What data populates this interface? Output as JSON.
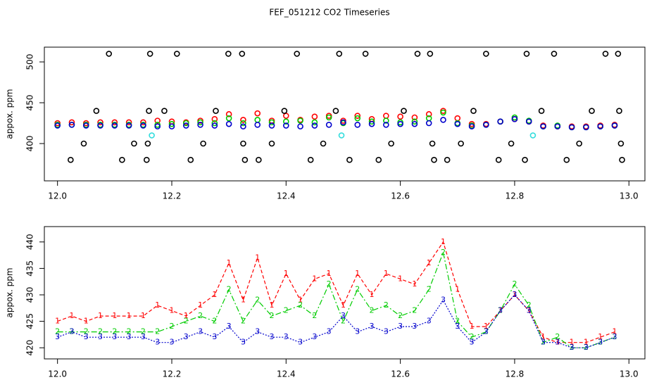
{
  "chart_data": [
    {
      "type": "scatter",
      "title": "FEF_051212  CO2 Timeseries",
      "ylabel": "appox. ppm",
      "xlim": [
        11.977,
        13.028
      ],
      "ylim": [
        354.3,
        518.1
      ],
      "xticks": [
        {
          "value": 12,
          "label": "12.0"
        },
        12.2,
        12.4,
        12.6,
        12.8,
        {
          "value": 13,
          "label": "13.0"
        }
      ],
      "yticks": [
        400,
        450,
        500
      ],
      "series": [
        {
          "color": "#ff0000",
          "x": [
            12.0,
            12.025,
            12.05,
            12.075,
            12.1,
            12.125,
            12.15,
            12.175,
            12.2,
            12.225,
            12.25,
            12.275,
            12.3,
            12.325,
            12.35,
            12.375,
            12.4,
            12.425,
            12.45,
            12.475,
            12.5,
            12.525,
            12.55,
            12.575,
            12.6,
            12.625,
            12.65,
            12.675,
            12.7,
            12.725,
            12.75,
            12.775,
            12.8,
            12.825,
            12.85,
            12.875,
            12.9,
            12.925,
            12.95,
            12.975
          ],
          "values": [
            425,
            426,
            425,
            426,
            426,
            426,
            426,
            428,
            427,
            426,
            428,
            430,
            436,
            429,
            437,
            428,
            434,
            429,
            433,
            434,
            428,
            434,
            430,
            434,
            433,
            432,
            436,
            440,
            431,
            424,
            424,
            427,
            430,
            427,
            422,
            421,
            421,
            421,
            422,
            423
          ]
        },
        {
          "color": "#00cc00",
          "x": [
            12.0,
            12.025,
            12.05,
            12.075,
            12.1,
            12.125,
            12.15,
            12.175,
            12.2,
            12.225,
            12.25,
            12.275,
            12.3,
            12.325,
            12.35,
            12.375,
            12.4,
            12.425,
            12.45,
            12.475,
            12.5,
            12.525,
            12.55,
            12.575,
            12.6,
            12.625,
            12.65,
            12.675,
            12.7,
            12.725,
            12.75,
            12.775,
            12.8,
            12.825,
            12.85,
            12.875,
            12.9,
            12.925,
            12.95,
            12.975
          ],
          "values": [
            423,
            423,
            423,
            423,
            423,
            423,
            423,
            423,
            424,
            425,
            426,
            425,
            431,
            425,
            429,
            426,
            427,
            428,
            426,
            432,
            425,
            431,
            427,
            428,
            426,
            427,
            431,
            438,
            425,
            422,
            423,
            427,
            432,
            428,
            421,
            422,
            420,
            420,
            421,
            422
          ]
        },
        {
          "color": "#0000cc",
          "x": [
            12.0,
            12.025,
            12.05,
            12.075,
            12.1,
            12.125,
            12.15,
            12.175,
            12.2,
            12.225,
            12.25,
            12.275,
            12.3,
            12.325,
            12.35,
            12.375,
            12.4,
            12.425,
            12.45,
            12.475,
            12.5,
            12.525,
            12.55,
            12.575,
            12.6,
            12.625,
            12.65,
            12.675,
            12.7,
            12.725,
            12.75,
            12.775,
            12.8,
            12.825,
            12.85,
            12.875,
            12.9,
            12.925,
            12.95,
            12.975
          ],
          "values": [
            422,
            423,
            422,
            422,
            422,
            422,
            422,
            421,
            421,
            422,
            423,
            422,
            424,
            421,
            423,
            422,
            422,
            421,
            422,
            423,
            426,
            423,
            424,
            423,
            424,
            424,
            425,
            429,
            424,
            421,
            423,
            427,
            430,
            427,
            421,
            421,
            420,
            420,
            421,
            422
          ]
        },
        {
          "color": "#000000",
          "x": [
            12.023,
            12.046,
            12.068,
            12.09,
            12.113,
            12.134,
            12.156,
            12.158,
            12.16,
            12.162,
            12.187,
            12.209,
            12.233,
            12.255,
            12.277,
            12.299,
            12.323,
            12.325,
            12.328,
            12.352,
            12.375,
            12.397,
            12.419,
            12.443,
            12.465,
            12.487,
            12.493,
            12.511,
            12.539,
            12.562,
            12.584,
            12.606,
            12.63,
            12.652,
            12.656,
            12.659,
            12.682,
            12.706,
            12.728,
            12.75,
            12.772,
            12.794,
            12.818,
            12.821,
            12.847,
            12.869,
            12.891,
            12.913,
            12.935,
            12.959,
            12.981,
            12.983,
            12.986,
            12.988
          ],
          "values": [
            380,
            400,
            440,
            510,
            380,
            400,
            380,
            400,
            440,
            510,
            440,
            510,
            380,
            400,
            440,
            510,
            510,
            400,
            380,
            380,
            400,
            440,
            510,
            380,
            400,
            440,
            510,
            380,
            510,
            380,
            400,
            440,
            510,
            510,
            400,
            380,
            380,
            400,
            440,
            510,
            380,
            400,
            380,
            510,
            440,
            510,
            380,
            400,
            440,
            510,
            510,
            440,
            400,
            380
          ]
        },
        {
          "color": "#33dddd",
          "x": [
            12.165,
            12.497,
            12.832
          ],
          "values": [
            410,
            410,
            410
          ]
        }
      ]
    },
    {
      "type": "line",
      "ylabel": "appox. ppm",
      "xlim": [
        11.977,
        13.028
      ],
      "ylim": [
        417.9,
        442.9
      ],
      "xticks": [
        {
          "value": 12,
          "label": "12.0"
        },
        12.2,
        12.4,
        12.6,
        12.8,
        {
          "value": 13,
          "label": "13.0"
        }
      ],
      "yticks": [
        420,
        425,
        430,
        435,
        440
      ],
      "series": [
        {
          "marker": "1",
          "color": "#ff0000",
          "x": [
            12.0,
            12.025,
            12.05,
            12.075,
            12.1,
            12.125,
            12.15,
            12.175,
            12.2,
            12.225,
            12.25,
            12.275,
            12.3,
            12.325,
            12.35,
            12.375,
            12.4,
            12.425,
            12.45,
            12.475,
            12.5,
            12.525,
            12.55,
            12.575,
            12.6,
            12.625,
            12.65,
            12.675,
            12.7,
            12.725,
            12.75,
            12.775,
            12.8,
            12.825,
            12.85,
            12.875,
            12.9,
            12.925,
            12.95,
            12.975
          ],
          "values": [
            425,
            426,
            425,
            426,
            426,
            426,
            426,
            428,
            427,
            426,
            428,
            430,
            436,
            429,
            437,
            428,
            434,
            429,
            433,
            434,
            428,
            434,
            430,
            434,
            433,
            432,
            436,
            440,
            431,
            424,
            424,
            427,
            430,
            427,
            422,
            421,
            421,
            421,
            422,
            423
          ]
        },
        {
          "marker": "2",
          "color": "#00cc00",
          "x": [
            12.0,
            12.025,
            12.05,
            12.075,
            12.1,
            12.125,
            12.15,
            12.175,
            12.2,
            12.225,
            12.25,
            12.275,
            12.3,
            12.325,
            12.35,
            12.375,
            12.4,
            12.425,
            12.45,
            12.475,
            12.5,
            12.525,
            12.55,
            12.575,
            12.6,
            12.625,
            12.65,
            12.675,
            12.7,
            12.725,
            12.75,
            12.775,
            12.8,
            12.825,
            12.85,
            12.875,
            12.9,
            12.925,
            12.95,
            12.975
          ],
          "values": [
            423,
            423,
            423,
            423,
            423,
            423,
            423,
            423,
            424,
            425,
            426,
            425,
            431,
            425,
            429,
            426,
            427,
            428,
            426,
            432,
            425,
            431,
            427,
            428,
            426,
            427,
            431,
            438,
            425,
            422,
            423,
            427,
            432,
            428,
            421,
            422,
            420,
            420,
            421,
            422
          ]
        },
        {
          "marker": "3",
          "color": "#0000cc",
          "x": [
            12.0,
            12.025,
            12.05,
            12.075,
            12.1,
            12.125,
            12.15,
            12.175,
            12.2,
            12.225,
            12.25,
            12.275,
            12.3,
            12.325,
            12.35,
            12.375,
            12.4,
            12.425,
            12.45,
            12.475,
            12.5,
            12.525,
            12.55,
            12.575,
            12.6,
            12.625,
            12.65,
            12.675,
            12.7,
            12.725,
            12.75,
            12.775,
            12.8,
            12.825,
            12.85,
            12.875,
            12.9,
            12.925,
            12.95,
            12.975
          ],
          "values": [
            422,
            423,
            422,
            422,
            422,
            422,
            422,
            421,
            421,
            422,
            423,
            422,
            424,
            421,
            423,
            422,
            422,
            421,
            422,
            423,
            426,
            423,
            424,
            423,
            424,
            424,
            425,
            429,
            424,
            421,
            423,
            427,
            430,
            427,
            421,
            421,
            420,
            420,
            421,
            422
          ]
        }
      ]
    }
  ]
}
